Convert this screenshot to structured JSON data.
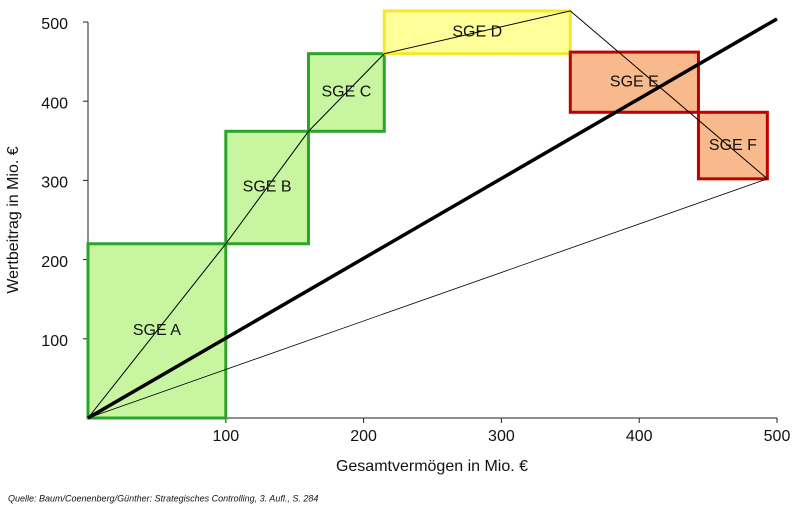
{
  "chart_data": {
    "type": "value-contribution",
    "xlabel": "Gesamtvermögen in Mio. €",
    "ylabel": "Wertbeitrag in Mio. €",
    "source": "Quelle: Baum/Coenenberg/Günther: Strategisches Controlling, 3. Aufl., S. 284",
    "xlim": [
      0,
      500
    ],
    "ylim": [
      0,
      500
    ],
    "xticks": [
      100,
      200,
      300,
      400,
      500
    ],
    "yticks": [
      100,
      200,
      300,
      400,
      500
    ],
    "grid": false,
    "boxes": [
      {
        "name": "SGE A",
        "x": [
          0,
          100
        ],
        "y": [
          0,
          220
        ],
        "fill": "#c8f5a0",
        "stroke": "#2aa52a"
      },
      {
        "name": "SGE B",
        "x": [
          100,
          160
        ],
        "y": [
          220,
          362
        ],
        "fill": "#c8f5a0",
        "stroke": "#2aa52a"
      },
      {
        "name": "SGE C",
        "x": [
          160,
          215
        ],
        "y": [
          362,
          460
        ],
        "fill": "#c8f5a0",
        "stroke": "#2aa52a"
      },
      {
        "name": "SGE D",
        "x": [
          215,
          350
        ],
        "y": [
          460,
          514
        ],
        "fill": "#ffff9a",
        "stroke": "#f5e82a"
      },
      {
        "name": "SGE E",
        "x": [
          350,
          443
        ],
        "y": [
          386,
          462
        ],
        "fill": "#f8b98c",
        "stroke": "#c00000"
      },
      {
        "name": "SGE F",
        "x": [
          443,
          493
        ],
        "y": [
          302,
          386
        ],
        "fill": "#f8b98c",
        "stroke": "#c00000"
      }
    ],
    "lines": [
      {
        "x": [
          0,
          100,
          160,
          215,
          350,
          493
        ],
        "y": [
          0,
          220,
          362,
          460,
          514,
          302
        ],
        "color": "#000000",
        "width": 1
      },
      {
        "x": [
          0,
          493
        ],
        "y": [
          0,
          302
        ],
        "color": "#000000",
        "width": 0.8
      },
      {
        "x": [
          0,
          500
        ],
        "y": [
          0,
          504
        ],
        "color": "#000000",
        "width": 3.5
      }
    ]
  }
}
